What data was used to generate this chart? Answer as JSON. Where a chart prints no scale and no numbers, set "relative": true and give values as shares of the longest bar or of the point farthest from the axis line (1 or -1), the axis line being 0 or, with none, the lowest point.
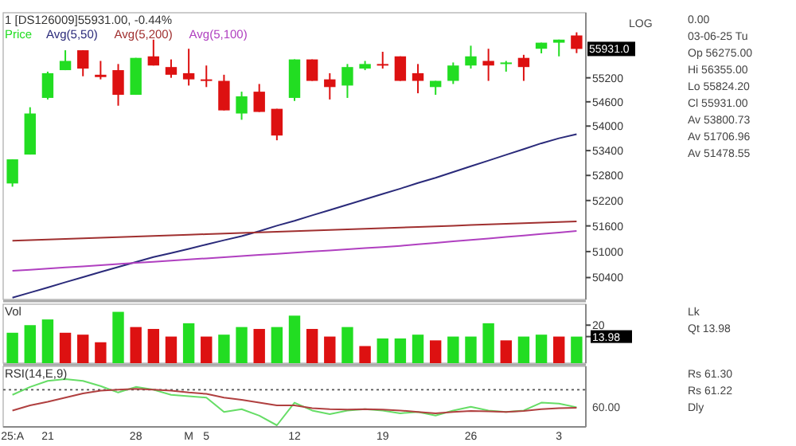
{
  "chart_data": [
    {
      "type": "candlestick",
      "title": "1 [DS126009]55931.00, -0.44%",
      "categories": [
        null,
        null,
        null,
        null,
        null,
        null,
        null,
        null,
        null,
        null,
        null,
        null,
        null,
        null,
        null,
        null,
        null,
        null,
        null,
        null,
        null,
        null,
        null,
        null,
        null,
        null,
        null,
        null,
        null,
        null,
        null,
        null,
        null
      ],
      "log": true,
      "tick_labels": "y",
      "ylim": [
        49900,
        56860
      ],
      "yticks": [
        50400,
        51000,
        51600,
        52200,
        52800,
        53400,
        54000,
        54600,
        55200
      ],
      "legend": "top left",
      "series": [
        {
          "name": "Price",
          "color": "#22dd22",
          "colors": [
            "#22dd22",
            "#22dd22",
            "#22dd22",
            "#22dd22",
            "#dd1111",
            "#dd1111",
            "#dd1111",
            "#22dd22",
            "#dd1111",
            "#dd1111",
            "#dd1111",
            "#dd1111",
            "#dd1111",
            "#22dd22",
            "#dd1111",
            "#dd1111",
            "#22dd22",
            "#dd1111",
            "#dd1111",
            "#22dd22",
            "#22dd22",
            "#dd1111",
            "#dd1111",
            "#dd1111",
            "#22dd22",
            "#22dd22",
            "#22dd22",
            "#dd1111",
            "#22dd22",
            "#dd1111",
            "#22dd22",
            "#22dd22",
            "#dd1111"
          ],
          "ohlc": [
            [
              52607,
              53188,
              52530,
              53188
            ],
            [
              53304,
              54465,
              53304,
              54310
            ],
            [
              54697,
              55355,
              54658,
              55316
            ],
            [
              55393,
              55897,
              55393,
              55626
            ],
            [
              55897,
              55897,
              55239,
              55432
            ],
            [
              55277,
              55626,
              55161,
              55219
            ],
            [
              55393,
              55548,
              54503,
              54774
            ],
            [
              54774,
              55703,
              54774,
              55703
            ],
            [
              55742,
              56168,
              55510,
              55510
            ],
            [
              55471,
              55664,
              55200,
              55277
            ],
            [
              55316,
              55935,
              55006,
              55161
            ],
            [
              55161,
              55510,
              54968,
              55123
            ],
            [
              55123,
              55277,
              54387,
              54387
            ],
            [
              54310,
              54852,
              54155,
              54736
            ],
            [
              54852,
              55045,
              54349,
              54349
            ],
            [
              54426,
              54426,
              53652,
              53768
            ],
            [
              54697,
              55664,
              54620,
              55664
            ],
            [
              55664,
              55664,
              55123,
              55123
            ],
            [
              55161,
              55316,
              54658,
              54968
            ],
            [
              55006,
              55548,
              54697,
              55471
            ],
            [
              55432,
              55626,
              55393,
              55548
            ],
            [
              55548,
              55858,
              55432,
              55510
            ],
            [
              55742,
              55742,
              55123,
              55123
            ],
            [
              55316,
              55548,
              54813,
              55123
            ],
            [
              54968,
              55123,
              54774,
              55123
            ],
            [
              55123,
              55587,
              55045,
              55510
            ],
            [
              55510,
              56013,
              55432,
              55742
            ],
            [
              55626,
              55935,
              55123,
              55510
            ],
            [
              55548,
              55626,
              55355,
              55587
            ],
            [
              55703,
              55781,
              55123,
              55471
            ],
            [
              55935,
              56090,
              55819,
              56090
            ],
            [
              56090,
              56168,
              55742,
              56168
            ],
            [
              56275,
              56355,
              55824.2,
              55931
            ]
          ]
        },
        {
          "name": "Avg(5,50)",
          "type": "line",
          "color": "#2a2a7a",
          "values": [
            49941,
            50057,
            50173,
            50293,
            50409,
            50527,
            50643,
            50757,
            50873,
            50966,
            51063,
            51164,
            51264,
            51361,
            51477,
            51605,
            51721,
            51849,
            51972,
            52100,
            52228,
            52357,
            52483,
            52619,
            52743,
            52882,
            53021,
            53157,
            53297,
            53435,
            53578,
            53700,
            53801
          ]
        },
        {
          "name": "Avg(5,200)",
          "type": "line",
          "color": "#a03030",
          "values": [
            51254,
            51268,
            51282,
            51296,
            51310,
            51324,
            51337,
            51351,
            51365,
            51379,
            51393,
            51407,
            51421,
            51435,
            51449,
            51463,
            51476,
            51490,
            51504,
            51518,
            51532,
            51546,
            51560,
            51575,
            51590,
            51604,
            51619,
            51634,
            51648,
            51663,
            51678,
            51692,
            51707
          ]
        },
        {
          "name": "Avg(5,100)",
          "type": "line",
          "color": "#b040c0",
          "values": [
            50554,
            50580,
            50607,
            50633,
            50659,
            50686,
            50712,
            50738,
            50764,
            50791,
            50817,
            50843,
            50870,
            50896,
            50922,
            50949,
            50975,
            51001,
            51027,
            51054,
            51080,
            51106,
            51133,
            51168,
            51202,
            51237,
            51271,
            51306,
            51341,
            51375,
            51410,
            51444,
            51479
          ]
        }
      ],
      "annotations": [
        "LOG",
        "0.00",
        "03-06-25 Tu",
        "Op 56275.00",
        "Hi 56355.00",
        "Lo 55824.20",
        "Cl 55931.00",
        "Av 53800.73",
        "Av 51706.96",
        "Av 51478.55",
        {
          "text": "55931.0",
          "y": 55931
        }
      ]
    },
    {
      "type": "bar",
      "title": "Vol",
      "categories": [
        null,
        null,
        null,
        null,
        null,
        null,
        null,
        null,
        null,
        null,
        null,
        null,
        null,
        null,
        null,
        null,
        null,
        null,
        null,
        null,
        null,
        null,
        null,
        null,
        null,
        null,
        null,
        null,
        null,
        null,
        null,
        null,
        null
      ],
      "tick_labels": "y",
      "ylim": [
        0,
        31
      ],
      "yticks": [
        20,
        {
          "value": 13.98,
          "label": "13.98"
        }
      ],
      "values": [
        16,
        20,
        23,
        16,
        15,
        11,
        27,
        19,
        18,
        14,
        21,
        14,
        15,
        19,
        18,
        19,
        25,
        18,
        14,
        19,
        9,
        13,
        13,
        15,
        12,
        14,
        14,
        21,
        12,
        14,
        15,
        14,
        13.98
      ],
      "colors": [
        "#22dd22",
        "#22dd22",
        "#22dd22",
        "#dd1111",
        "#dd1111",
        "#dd1111",
        "#22dd22",
        "#dd1111",
        "#dd1111",
        "#dd1111",
        "#22dd22",
        "#dd1111",
        "#22dd22",
        "#22dd22",
        "#dd1111",
        "#22dd22",
        "#22dd22",
        "#dd1111",
        "#dd1111",
        "#22dd22",
        "#dd1111",
        "#22dd22",
        "#22dd22",
        "#22dd22",
        "#dd1111",
        "#22dd22",
        "#22dd22",
        "#22dd22",
        "#dd1111",
        "#22dd22",
        "#22dd22",
        "#dd1111",
        "#22dd22"
      ],
      "annotations": [
        "Lk",
        "Qt 13.98"
      ]
    },
    {
      "type": "line",
      "title": "RSI(14,E,9)",
      "categories": [
        "25:A",
        null,
        "21",
        null,
        null,
        null,
        null,
        "28",
        null,
        null,
        "M",
        "5",
        null,
        null,
        null,
        null,
        "12",
        null,
        null,
        null,
        null,
        "19",
        null,
        null,
        null,
        null,
        "26",
        null,
        null,
        null,
        null,
        "3",
        null
      ],
      "relative": true,
      "ref_lines": [
        {
          "axis": "y",
          "value": 0.77,
          "line_style": "dotted",
          "color": "#555555"
        }
      ],
      "series": [
        {
          "color": "#66dd66",
          "values": [
            0.66,
            0.83,
            0.96,
            1,
            0.96,
            0.85,
            0.71,
            0.83,
            0.77,
            0.66,
            0.63,
            0.6,
            0.29,
            0.35,
            0.21,
            0,
            0.49,
            0.32,
            0.24,
            0.32,
            0.35,
            0.32,
            0.26,
            0.29,
            0.21,
            0.32,
            0.4,
            0.32,
            0.29,
            0.32,
            0.49,
            0.47,
            0.39
          ]
        },
        {
          "color": "#b04040",
          "values": [
            0.32,
            0.43,
            0.51,
            0.6,
            0.69,
            0.75,
            0.77,
            0.79,
            0.77,
            0.75,
            0.71,
            0.68,
            0.6,
            0.55,
            0.49,
            0.43,
            0.43,
            0.37,
            0.35,
            0.34,
            0.35,
            0.34,
            0.32,
            0.29,
            0.26,
            0.29,
            0.31,
            0.3,
            0.29,
            0.31,
            0.35,
            0.37,
            0.38
          ]
        }
      ],
      "annotations": [
        "Rs 61.30",
        "Rs 61.22",
        "Dly",
        "60.00"
      ]
    }
  ]
}
